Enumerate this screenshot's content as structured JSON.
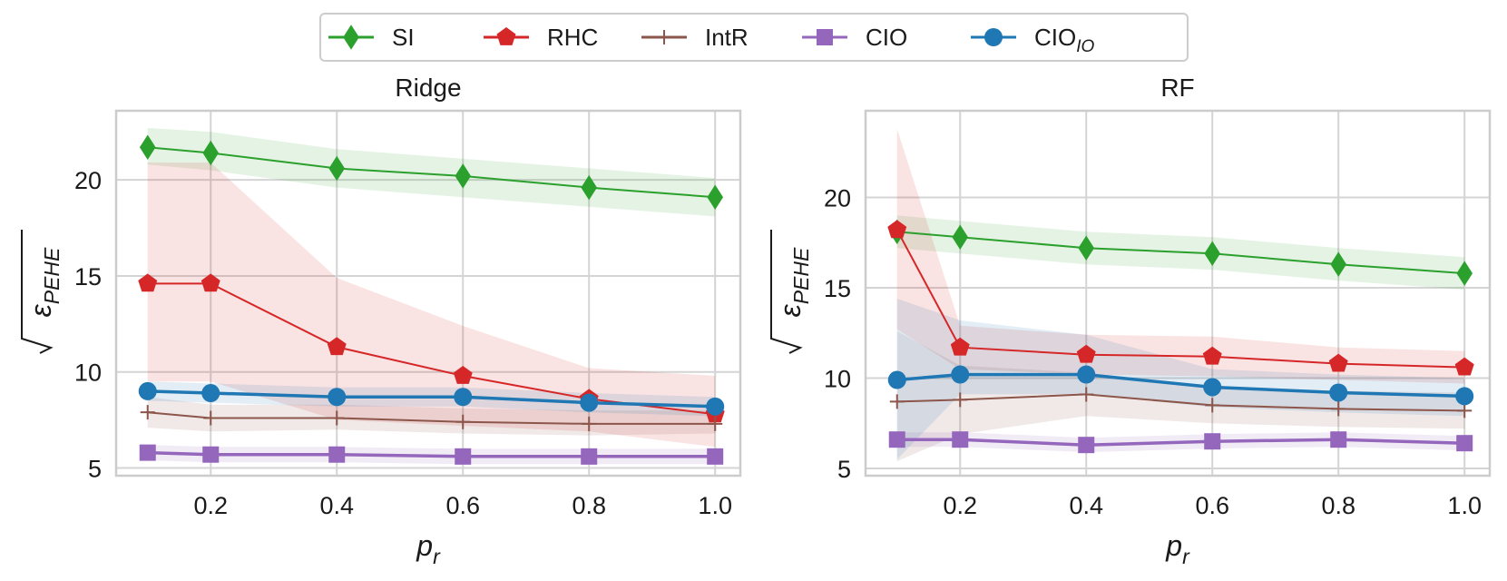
{
  "legend": [
    {
      "key": "SI",
      "label": "SI",
      "sub": "",
      "color": "#2ca02c",
      "marker": "diamond"
    },
    {
      "key": "RHC",
      "label": "RHC",
      "sub": "",
      "color": "#d62728",
      "marker": "pentagon"
    },
    {
      "key": "IntR",
      "label": "IntR",
      "sub": "",
      "color": "#8c564b",
      "marker": "plus"
    },
    {
      "key": "CIO",
      "label": "CIO",
      "sub": "",
      "color": "#9467bd",
      "marker": "square"
    },
    {
      "key": "CIO_IO",
      "label": "CIO",
      "sub": "IO",
      "color": "#1f77b4",
      "marker": "circle"
    }
  ],
  "chart_data": [
    {
      "type": "line",
      "title": "Ridge",
      "xlabel": "p",
      "xlabel_sub": "r",
      "ylabel": "ε",
      "ylabel_sub": "PEHE",
      "x": [
        0.1,
        0.2,
        0.4,
        0.6,
        0.8,
        1.0
      ],
      "xticks": [
        "0.2",
        "0.4",
        "0.6",
        "0.8",
        "1.0"
      ],
      "xtick_values": [
        0.2,
        0.4,
        0.6,
        0.8,
        1.0
      ],
      "yticks": [
        "5",
        "10",
        "15",
        "20"
      ],
      "ytick_values": [
        5,
        10,
        15,
        20
      ],
      "xlim": [
        0.05,
        1.04
      ],
      "ylim": [
        4.6,
        23.6
      ],
      "grid": true,
      "series": [
        {
          "key": "SI",
          "values": [
            21.7,
            21.4,
            20.6,
            20.2,
            19.6,
            19.1
          ],
          "lower": [
            20.8,
            20.5,
            19.6,
            19.1,
            18.6,
            18.1
          ],
          "upper": [
            22.7,
            22.5,
            21.6,
            21.1,
            20.6,
            20.1
          ]
        },
        {
          "key": "RHC",
          "values": [
            14.6,
            14.6,
            11.3,
            9.8,
            8.6,
            7.8
          ],
          "lower": [
            9.5,
            9.5,
            7.5,
            7.2,
            6.9,
            6.1
          ],
          "upper": [
            20.9,
            20.9,
            14.9,
            12.4,
            10.2,
            9.8
          ]
        },
        {
          "key": "IntR",
          "values": [
            7.9,
            7.6,
            7.6,
            7.4,
            7.3,
            7.3
          ],
          "lower": [
            7.1,
            6.9,
            7.0,
            6.8,
            6.7,
            6.8
          ],
          "upper": [
            8.7,
            8.3,
            8.3,
            8.1,
            8.0,
            8.0
          ]
        },
        {
          "key": "CIO",
          "values": [
            5.8,
            5.7,
            5.7,
            5.6,
            5.6,
            5.6
          ],
          "lower": [
            5.4,
            5.3,
            5.3,
            5.2,
            5.2,
            5.2
          ],
          "upper": [
            6.2,
            6.1,
            6.1,
            6.0,
            6.0,
            6.0
          ]
        },
        {
          "key": "CIO_IO",
          "values": [
            9.0,
            8.9,
            8.7,
            8.7,
            8.4,
            8.2
          ],
          "lower": [
            8.5,
            8.4,
            8.2,
            8.2,
            7.9,
            7.7
          ],
          "upper": [
            9.5,
            9.4,
            9.2,
            9.2,
            8.9,
            8.7
          ]
        }
      ]
    },
    {
      "type": "line",
      "title": "RF",
      "xlabel": "p",
      "xlabel_sub": "r",
      "ylabel": "ε",
      "ylabel_sub": "PEHE",
      "x": [
        0.1,
        0.2,
        0.4,
        0.6,
        0.8,
        1.0
      ],
      "xticks": [
        "0.2",
        "0.4",
        "0.6",
        "0.8",
        "1.0"
      ],
      "xtick_values": [
        0.2,
        0.4,
        0.6,
        0.8,
        1.0
      ],
      "yticks": [
        "5",
        "10",
        "15",
        "20"
      ],
      "ytick_values": [
        5,
        10,
        15,
        20
      ],
      "xlim": [
        0.05,
        1.04
      ],
      "ylim": [
        4.6,
        24.8
      ],
      "grid": true,
      "series": [
        {
          "key": "SI",
          "values": [
            18.1,
            17.8,
            17.2,
            16.9,
            16.3,
            15.8
          ],
          "lower": [
            17.2,
            16.9,
            16.3,
            16.0,
            15.4,
            14.9
          ],
          "upper": [
            19.0,
            18.7,
            18.1,
            17.8,
            17.2,
            16.7
          ]
        },
        {
          "key": "RHC",
          "values": [
            18.2,
            11.7,
            11.3,
            11.2,
            10.8,
            10.6
          ],
          "lower": [
            12.7,
            10.5,
            10.2,
            10.1,
            9.9,
            9.7
          ],
          "upper": [
            23.8,
            12.9,
            12.4,
            12.3,
            11.7,
            11.5
          ]
        },
        {
          "key": "IntR",
          "values": [
            8.7,
            8.8,
            9.1,
            8.5,
            8.3,
            8.2
          ],
          "lower": [
            5.4,
            6.9,
            7.9,
            7.5,
            7.3,
            7.2
          ],
          "upper": [
            12.6,
            10.7,
            10.3,
            9.5,
            9.3,
            9.2
          ]
        },
        {
          "key": "CIO",
          "values": [
            6.6,
            6.6,
            6.3,
            6.5,
            6.6,
            6.4
          ],
          "lower": [
            6.2,
            6.2,
            5.9,
            6.1,
            6.2,
            6.0
          ],
          "upper": [
            7.0,
            7.0,
            6.7,
            6.9,
            7.0,
            6.8
          ]
        },
        {
          "key": "CIO_IO",
          "values": [
            9.9,
            10.2,
            10.2,
            9.5,
            9.2,
            9.0
          ],
          "lower": [
            5.5,
            9.1,
            9.1,
            8.4,
            8.1,
            7.9
          ],
          "upper": [
            14.4,
            13.2,
            12.4,
            10.5,
            10.2,
            10.0
          ]
        }
      ]
    }
  ]
}
